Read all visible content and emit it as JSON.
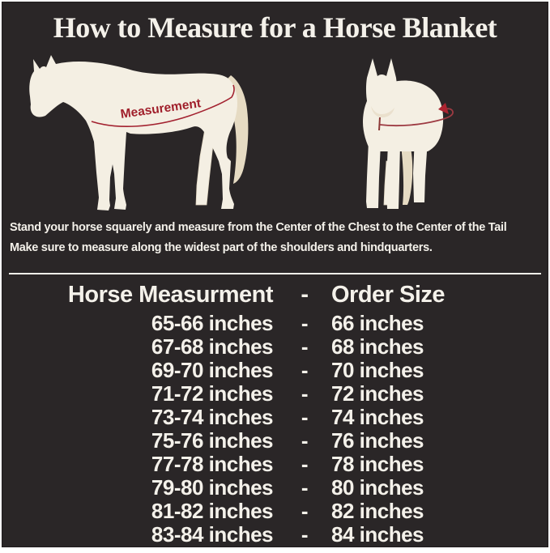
{
  "title": "How to Measure for a Horse Blanket",
  "diagram": {
    "side_horse_icon": "side-view-horse-silhouette",
    "front_horse_icon": "front-view-horse-silhouette",
    "arrow_icon": "wrap-around-measuring-arrow",
    "measurement_label": "Measurement"
  },
  "instructions": {
    "line1": "Stand your horse squarely and measure from the Center of the Chest to the Center of the Tail",
    "line2": "Make sure to measure along the widest part of the shoulders and hindquarters."
  },
  "size_chart": {
    "header": {
      "measurement_col": "Horse Measurment",
      "separator": "-",
      "order_col": "Order Size"
    },
    "rows": [
      {
        "measurement": "65-66 inches",
        "separator": "-",
        "order_size": "66 inches"
      },
      {
        "measurement": "67-68 inches",
        "separator": "-",
        "order_size": "68 inches"
      },
      {
        "measurement": "69-70 inches",
        "separator": "-",
        "order_size": "70 inches"
      },
      {
        "measurement": "71-72 inches",
        "separator": "-",
        "order_size": "72 inches"
      },
      {
        "measurement": "73-74 inches",
        "separator": "-",
        "order_size": "74 inches"
      },
      {
        "measurement": "75-76 inches",
        "separator": "-",
        "order_size": "76 inches"
      },
      {
        "measurement": "77-78 inches",
        "separator": "-",
        "order_size": "78 inches"
      },
      {
        "measurement": "79-80 inches",
        "separator": "-",
        "order_size": "80 inches"
      },
      {
        "measurement": "81-82 inches",
        "separator": "-",
        "order_size": "82 inches"
      },
      {
        "measurement": "83-84 inches",
        "separator": "-",
        "order_size": "84 inches"
      }
    ]
  },
  "colors": {
    "background": "#2a2627",
    "frame": "#ffffff",
    "horse_body": "#f4efe3",
    "horse_tail": "#e6dbc3",
    "accent_red": "#a32230",
    "text_light": "#f4f1ea"
  }
}
